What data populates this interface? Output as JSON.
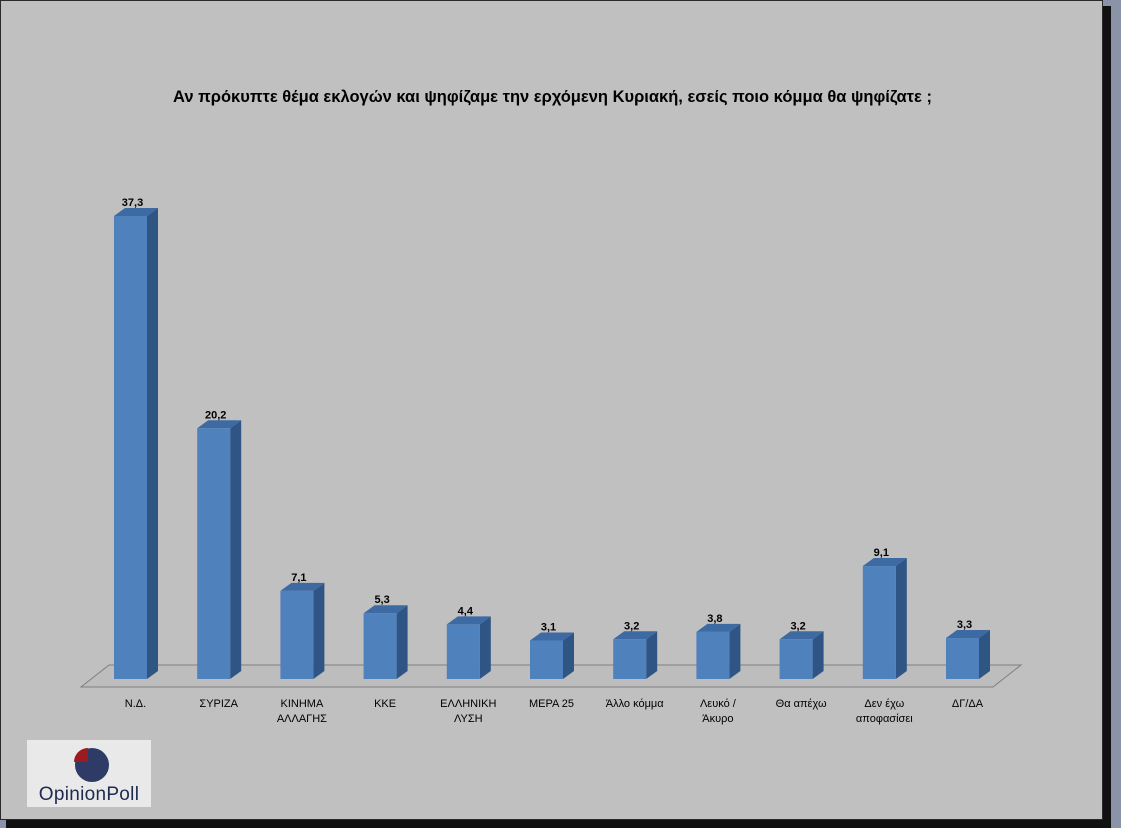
{
  "chart_data": {
    "type": "bar",
    "title": "Αν πρόκυπτε θέμα εκλογών και ψηφίζαμε την ερχόμενη Κυριακή, εσείς ποιο κόμμα θα ψηφίζατε ;",
    "categories": [
      [
        "Ν.Δ."
      ],
      [
        "ΣΥΡΙΖΑ"
      ],
      [
        "ΚΙΝΗΜΑ",
        "ΑΛΛΑΓΗΣ"
      ],
      [
        "ΚΚΕ"
      ],
      [
        "ΕΛΛΗΝΙΚΗ",
        "ΛΥΣΗ"
      ],
      [
        "ΜΕΡΑ 25"
      ],
      [
        "Άλλο κόμμα"
      ],
      [
        "Λευκό /",
        "Άκυρο"
      ],
      [
        "Θα απέχω"
      ],
      [
        "Δεν έχω",
        "αποφασίσει"
      ],
      [
        "ΔΓ/ΔΑ"
      ]
    ],
    "values": [
      37.3,
      20.2,
      7.1,
      5.3,
      4.4,
      3.1,
      3.2,
      3.8,
      3.2,
      9.1,
      3.3
    ],
    "value_labels": [
      "37,3",
      "20,2",
      "7,1",
      "5,3",
      "4,4",
      "3,1",
      "3,2",
      "3,8",
      "3,2",
      "9,1",
      "3,3"
    ],
    "xlabel": "",
    "ylabel": "",
    "ylim": [
      0,
      37.3
    ],
    "grid": false,
    "bar_color": "#4f81bd",
    "bar_side_color": "#2f5585",
    "bar_top_color": "#3e6aa4"
  },
  "logo": {
    "text": "OpinionPoll",
    "mark_colors": [
      "#9b1b1f",
      "#2e3b66"
    ]
  }
}
